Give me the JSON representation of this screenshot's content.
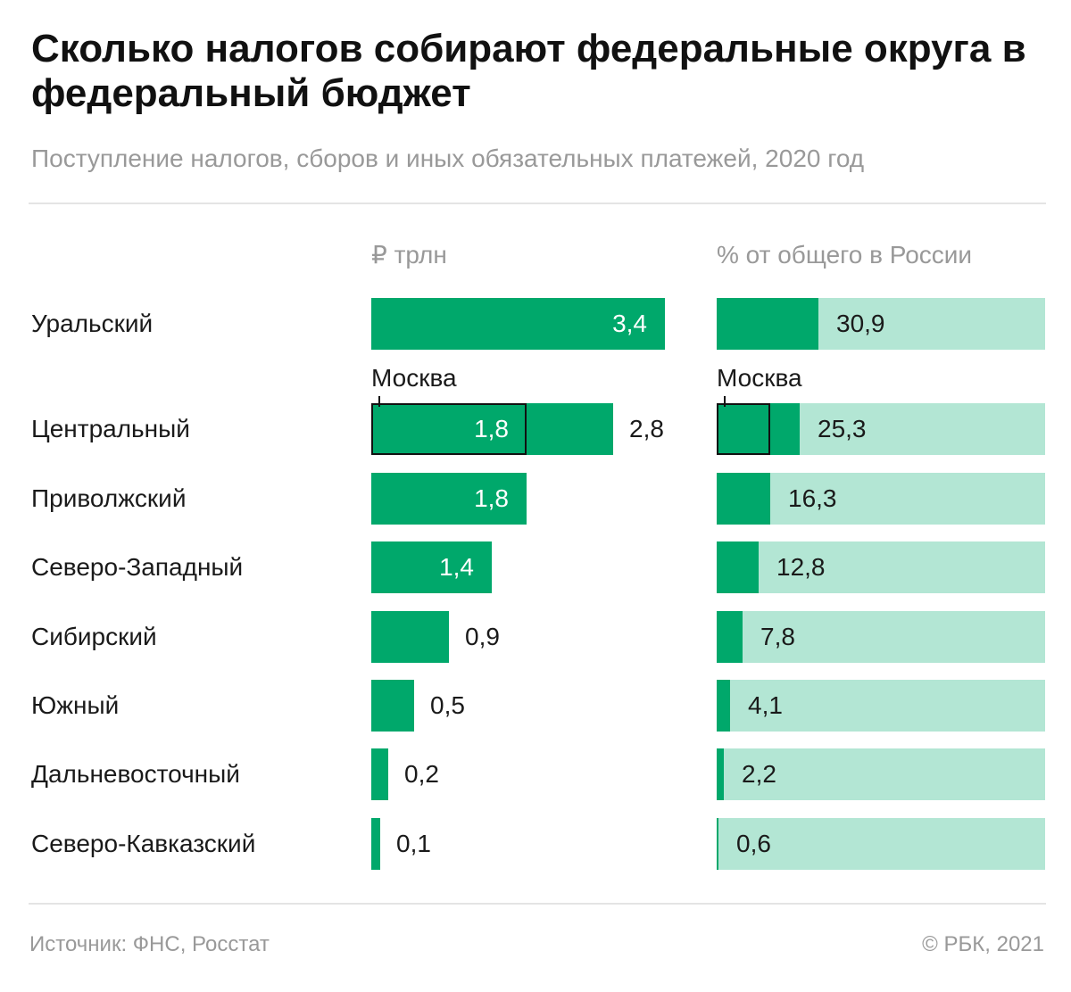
{
  "title": "Сколько налогов собирают федеральные округа в федеральный бюджет",
  "subtitle": "Поступление налогов, сборов и иных обязательных платежей, 2020 год",
  "col_headers": {
    "left": "₽ трлн",
    "right": "% от общего в России"
  },
  "source": "Источник: ФНС, Росстат",
  "copyright": "© РБК, 2021",
  "colors": {
    "bar": "#00a86b",
    "track": "#b3e6d4",
    "muted_text": "#999999",
    "text": "#1a1a1a"
  },
  "chart_data": [
    {
      "type": "bar",
      "orientation": "horizontal",
      "categories": [
        "Уральский",
        "Центральный",
        "Приволжский",
        "Северо-Западный",
        "Сибирский",
        "Южный",
        "Дальневосточный",
        "Северо-Кавказский"
      ],
      "values": [
        3.4,
        2.8,
        1.8,
        1.4,
        0.9,
        0.5,
        0.2,
        0.1
      ],
      "labels": [
        "3,4",
        "2,8",
        "1,8",
        "1,4",
        "0,9",
        "0,5",
        "0,2",
        "0,1"
      ],
      "unit": "₽ трлн",
      "xlim": [
        0,
        3.4
      ],
      "highlight": {
        "category": "Центральный",
        "name": "Москва",
        "value": 1.8,
        "label": "1,8"
      }
    },
    {
      "type": "bar",
      "orientation": "horizontal",
      "categories": [
        "Уральский",
        "Центральный",
        "Приволжский",
        "Северо-Западный",
        "Сибирский",
        "Южный",
        "Дальневосточный",
        "Северо-Кавказский"
      ],
      "values": [
        30.9,
        25.3,
        16.3,
        12.8,
        7.8,
        4.1,
        2.2,
        0.6
      ],
      "labels": [
        "30,9",
        "25,3",
        "16,3",
        "12,8",
        "7,8",
        "4,1",
        "2,2",
        "0,6"
      ],
      "unit": "% от общего в России",
      "xlim": [
        0,
        100
      ],
      "highlight": {
        "category": "Центральный",
        "name": "Москва",
        "value": 16.3
      }
    }
  ]
}
